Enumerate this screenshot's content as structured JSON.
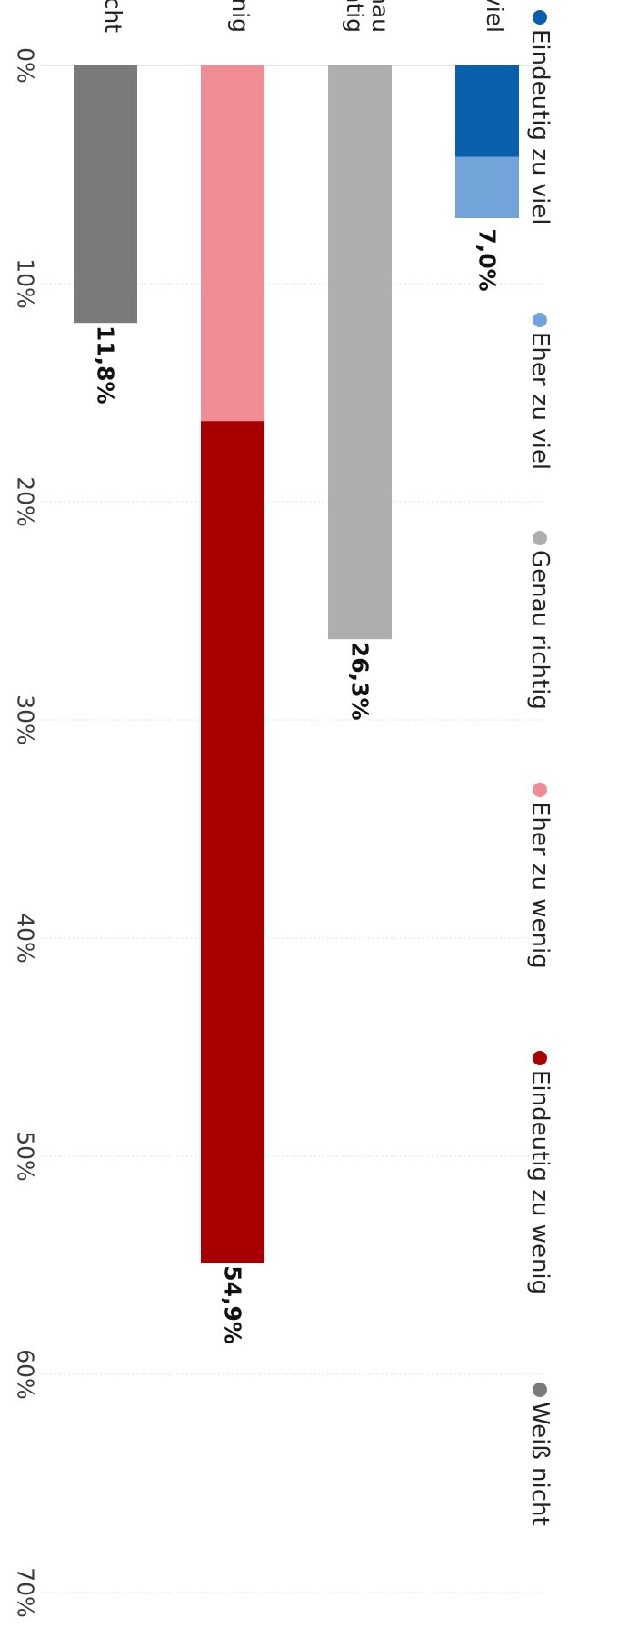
{
  "chart_data": {
    "type": "bar",
    "orientation": "horizontal",
    "stacked": true,
    "rotated_display": "90deg-clockwise",
    "categories": [
      "Zu viel",
      "Genau richtig",
      "Zu wenig",
      "Weiß nicht"
    ],
    "category_labels_visible": [
      "viel",
      "nau\nhtig",
      "nig",
      "cht"
    ],
    "series": [
      {
        "name": "Eindeutig zu viel",
        "color": "#0a5fad",
        "values": [
          4.2,
          0,
          0,
          0
        ]
      },
      {
        "name": "Eher zu viel",
        "color": "#72a3d9",
        "values": [
          2.8,
          0,
          0,
          0
        ]
      },
      {
        "name": "Genau richtig",
        "color": "#aeaeae",
        "values": [
          0,
          26.3,
          0,
          0
        ]
      },
      {
        "name": "Eher zu wenig",
        "color": "#f08c93",
        "values": [
          0,
          0,
          16.3,
          0
        ]
      },
      {
        "name": "Eindeutig zu wenig",
        "color": "#a80000",
        "values": [
          0,
          0,
          38.6,
          0
        ]
      },
      {
        "name": "Weiß nicht",
        "color": "#7a7a7a",
        "values": [
          0,
          0,
          0,
          11.8
        ]
      }
    ],
    "totals": [
      7.0,
      26.3,
      54.9,
      11.8
    ],
    "total_labels": [
      "7,0%",
      "26,3%",
      "54,9%",
      "11,8%"
    ],
    "xlim": [
      0,
      70
    ],
    "ticks": [
      0,
      10,
      20,
      30,
      40,
      50,
      60,
      70
    ],
    "tick_labels": [
      "0%",
      "10%",
      "20%",
      "30%",
      "40%",
      "50%",
      "60%",
      "70%"
    ],
    "grid": true,
    "legend_position": "top"
  }
}
